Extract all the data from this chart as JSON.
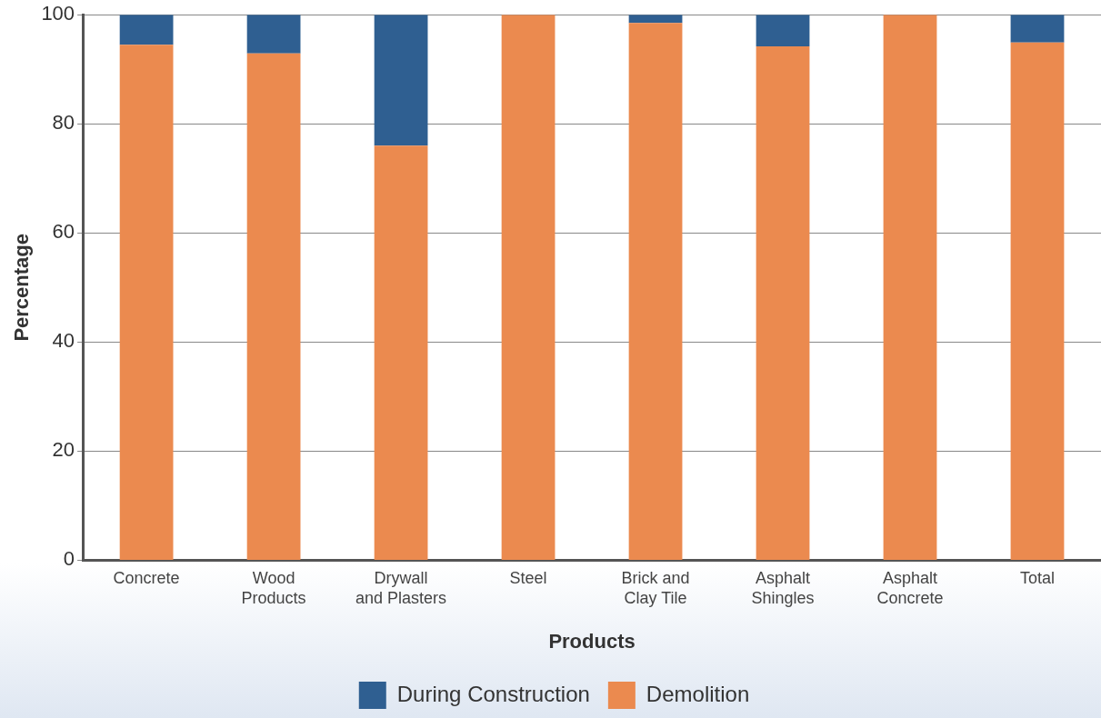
{
  "chart_data": {
    "type": "bar",
    "stacked": true,
    "xlabel": "Products",
    "ylabel": "Percentage",
    "categories": [
      "Concrete",
      "Wood\nProducts",
      "Drywall\nand Plasters",
      "Steel",
      "Brick and\nClay Tile",
      "Asphalt\nShingles",
      "Asphalt\nConcrete",
      "Total"
    ],
    "series": [
      {
        "name": "Demolition",
        "color": "#eb8a4f",
        "values": [
          94.5,
          92.9,
          76,
          100,
          98.5,
          94.2,
          100,
          94.9
        ]
      },
      {
        "name": "During Construction",
        "color": "#2f5f91",
        "values": [
          5.5,
          7.1,
          24,
          0,
          1.5,
          5.8,
          0,
          5.1
        ]
      }
    ],
    "ylim": [
      0,
      100
    ],
    "yticks": [
      0,
      20,
      40,
      60,
      80,
      100
    ],
    "grid": "y",
    "legend": "bottom"
  }
}
